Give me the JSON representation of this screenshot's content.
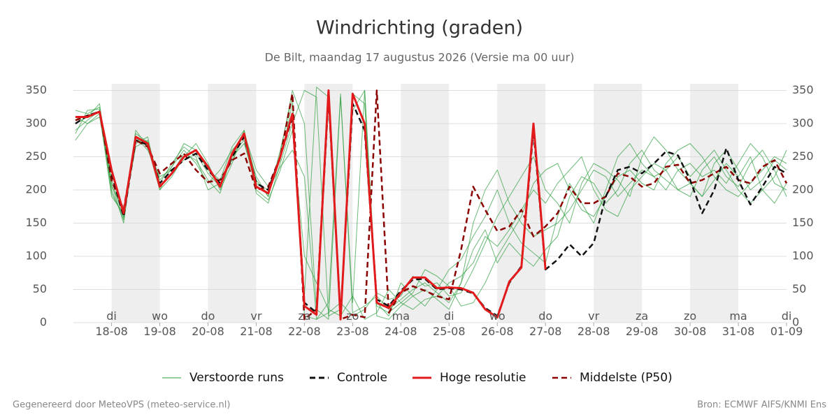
{
  "chart_data": {
    "type": "line",
    "title": "Windrichting (graden)",
    "subtitle": "De Bilt, maandag 17 augustus 2026 (Versie ma 00 uur)",
    "footer_left": "Gegenereerd door MeteoVPS (meteo-service.nl)",
    "footer_right": "Bron: ECMWF AIFS/KNMI Ens",
    "x": [
      6,
      12,
      18,
      24,
      30,
      36,
      42,
      48,
      54,
      60,
      66,
      72,
      78,
      84,
      90,
      96,
      102,
      108,
      114,
      120,
      126,
      132,
      138,
      144,
      150,
      156,
      162,
      168,
      174,
      180,
      186,
      192,
      198,
      204,
      210,
      216,
      222,
      228,
      234,
      240,
      246,
      252,
      258,
      264,
      270,
      276,
      282,
      288,
      294,
      300,
      306,
      312,
      318,
      324,
      330,
      336,
      342,
      348,
      354,
      360
    ],
    "xlim": [
      5,
      360
    ],
    "xticks": [
      {
        "value": 24,
        "label": "di\n18-08"
      },
      {
        "value": 48,
        "label": "wo\n19-08"
      },
      {
        "value": 72,
        "label": "do\n20-08"
      },
      {
        "value": 96,
        "label": "vr\n21-08"
      },
      {
        "value": 120,
        "label": "za\n22-08"
      },
      {
        "value": 144,
        "label": "zo\n23-08"
      },
      {
        "value": 168,
        "label": "ma\n24-08"
      },
      {
        "value": 192,
        "label": "di\n25-08"
      },
      {
        "value": 216,
        "label": "wo\n26-08"
      },
      {
        "value": 240,
        "label": "do\n27-08"
      },
      {
        "value": 264,
        "label": "vr\n28-08"
      },
      {
        "value": 288,
        "label": "za\n29-08"
      },
      {
        "value": 312,
        "label": "zo\n30-08"
      },
      {
        "value": 336,
        "label": "ma\n31-08"
      },
      {
        "value": 360,
        "label": "di\n01-09"
      }
    ],
    "ylim": [
      0,
      360
    ],
    "yticks": [
      0,
      50,
      100,
      150,
      200,
      250,
      300,
      350
    ],
    "grid": true,
    "ensemble": {
      "name": "Verstoorde runs",
      "color": "#2e9e3e",
      "runs": [
        [
          290,
          305,
          320,
          200,
          155,
          285,
          272,
          215,
          235,
          260,
          240,
          210,
          230,
          260,
          280,
          220,
          190,
          260,
          340,
          10,
          5,
          30,
          345,
          15,
          25,
          40,
          20,
          35,
          50,
          60,
          45,
          30,
          60,
          110,
          140,
          90,
          120,
          100,
          85,
          110,
          130,
          190,
          220,
          210,
          180,
          200,
          240,
          260,
          230,
          215,
          200,
          190,
          230,
          250,
          220,
          205,
          240,
          260,
          230,
          190
        ],
        [
          320,
          315,
          325,
          195,
          160,
          270,
          280,
          200,
          220,
          250,
          270,
          240,
          200,
          240,
          290,
          195,
          180,
          240,
          300,
          350,
          340,
          10,
          20,
          320,
          350,
          30,
          10,
          60,
          40,
          25,
          50,
          80,
          95,
          130,
          160,
          200,
          150,
          120,
          105,
          90,
          160,
          210,
          180,
          150,
          200,
          250,
          270,
          240,
          220,
          230,
          200,
          210,
          190,
          240,
          260,
          230,
          200,
          215,
          245,
          230
        ],
        [
          275,
          300,
          310,
          210,
          150,
          280,
          260,
          220,
          230,
          245,
          255,
          225,
          205,
          250,
          270,
          210,
          200,
          235,
          260,
          220,
          5,
          15,
          30,
          10,
          20,
          45,
          35,
          40,
          70,
          55,
          60,
          40,
          45,
          80,
          120,
          160,
          190,
          220,
          250,
          200,
          180,
          150,
          210,
          240,
          230,
          215,
          190,
          250,
          280,
          260,
          230,
          210,
          190,
          215,
          240,
          220,
          250,
          200,
          180,
          210
        ],
        [
          300,
          310,
          330,
          205,
          170,
          275,
          270,
          210,
          240,
          265,
          250,
          200,
          210,
          245,
          285,
          230,
          205,
          245,
          330,
          40,
          355,
          340,
          5,
          345,
          330,
          25,
          15,
          30,
          45,
          80,
          70,
          55,
          25,
          30,
          60,
          100,
          130,
          160,
          210,
          230,
          240,
          200,
          170,
          160,
          190,
          220,
          230,
          210,
          200,
          240,
          260,
          270,
          250,
          220,
          200,
          190,
          210,
          230,
          250,
          240
        ],
        [
          310,
          300,
          315,
          190,
          165,
          265,
          275,
          205,
          225,
          255,
          245,
          215,
          195,
          255,
          275,
          200,
          185,
          230,
          290,
          100,
          60,
          20,
          10,
          40,
          5,
          15,
          50,
          30,
          20,
          35,
          40,
          60,
          70,
          90,
          130,
          115,
          140,
          170,
          200,
          180,
          210,
          230,
          250,
          200,
          170,
          160,
          200,
          220,
          240,
          230,
          250,
          220,
          240,
          260,
          230,
          200,
          180,
          200,
          220,
          260
        ],
        [
          285,
          320,
          322,
          215,
          158,
          290,
          265,
          200,
          235,
          270,
          260,
          230,
          215,
          265,
          290,
          215,
          190,
          255,
          350,
          300,
          20,
          5,
          340,
          30,
          350,
          10,
          5,
          25,
          40,
          50,
          35,
          20,
          60,
          150,
          200,
          230,
          180,
          150,
          130,
          140,
          150,
          170,
          200,
          230,
          220,
          190,
          210,
          230,
          220,
          200,
          230,
          240,
          220,
          230,
          210,
          240,
          270,
          250,
          210,
          200
        ]
      ]
    },
    "series": [
      {
        "name": "Controle",
        "color": "#111111",
        "dashed": true,
        "values": [
          300,
          312,
          318,
          225,
          160,
          275,
          268,
          210,
          230,
          245,
          255,
          230,
          210,
          250,
          280,
          210,
          200,
          250,
          310,
          30,
          15,
          340,
          10,
          330,
          290,
          35,
          25,
          48,
          65,
          66,
          50,
          52,
          50,
          44,
          22,
          10,
          60,
          85,
          290,
          80,
          95,
          118,
          100,
          120,
          190,
          230,
          235,
          225,
          240,
          258,
          252,
          215,
          165,
          200,
          263,
          215,
          178,
          205,
          235,
          225
        ]
      },
      {
        "name": "Hoge resolutie",
        "color": "#e31a1c",
        "dashed": false,
        "values": [
          310,
          310,
          318,
          230,
          165,
          280,
          270,
          205,
          225,
          250,
          260,
          235,
          205,
          255,
          285,
          205,
          195,
          250,
          315,
          25,
          12,
          350,
          5,
          345,
          300,
          30,
          22,
          45,
          68,
          68,
          52,
          53,
          52,
          45,
          20,
          8,
          62,
          83,
          300,
          80,
          null,
          null,
          null,
          null,
          null,
          null,
          null,
          null,
          null,
          null,
          null,
          null,
          null,
          null,
          null,
          null,
          null,
          null,
          null,
          null
        ]
      },
      {
        "name": "Middelste (P50)",
        "color": "#8b0000",
        "dashed": true,
        "values": [
          305,
          312,
          318,
          215,
          170,
          275,
          265,
          225,
          240,
          255,
          230,
          212,
          215,
          245,
          255,
          200,
          205,
          250,
          345,
          5,
          20,
          350,
          5,
          12,
          8,
          350,
          15,
          45,
          55,
          48,
          40,
          35,
          110,
          205,
          170,
          138,
          145,
          170,
          130,
          145,
          165,
          205,
          180,
          180,
          190,
          225,
          220,
          205,
          210,
          235,
          238,
          210,
          215,
          225,
          235,
          215,
          210,
          235,
          245,
          210
        ]
      }
    ]
  }
}
